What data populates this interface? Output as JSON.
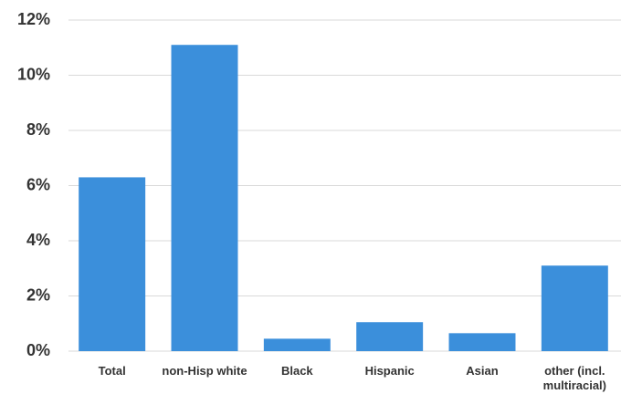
{
  "chart_data": {
    "type": "bar",
    "categories": [
      "Total",
      "non-Hisp white",
      "Black",
      "Hispanic",
      "Asian",
      "other (incl. multiracial)"
    ],
    "values": [
      6.3,
      11.1,
      0.45,
      1.05,
      0.65,
      3.1
    ],
    "color": "#3b8fdb",
    "ylim": [
      0,
      12
    ],
    "yticks": [
      {
        "value": 0,
        "label": "0%"
      },
      {
        "value": 2,
        "label": "2%"
      },
      {
        "value": 4,
        "label": "4%"
      },
      {
        "value": 6,
        "label": "6%"
      },
      {
        "value": 8,
        "label": "8%"
      },
      {
        "value": 10,
        "label": "10%"
      },
      {
        "value": 12,
        "label": "12%"
      }
    ],
    "grid": true
  }
}
